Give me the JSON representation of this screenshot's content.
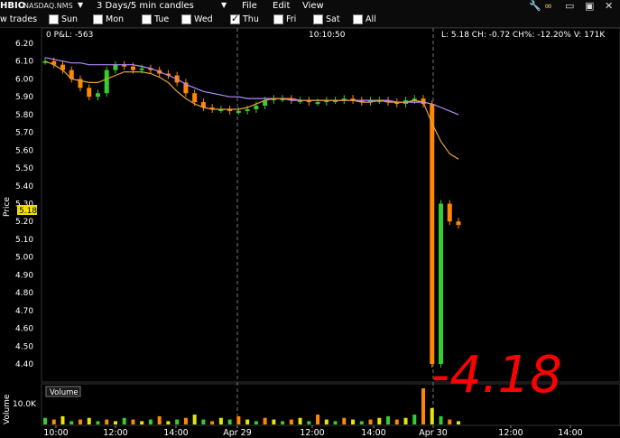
{
  "toolbar": {
    "symbol": "HBIO",
    "exchange": "NASDAQ.NMS",
    "timeframe": "3 Days/5 min candles",
    "menus": [
      "File",
      "Edit",
      "View"
    ]
  },
  "filters": {
    "label": "w trades",
    "days": [
      {
        "label": "Sun",
        "checked": false
      },
      {
        "label": "Mon",
        "checked": false
      },
      {
        "label": "Tue",
        "checked": false
      },
      {
        "label": "Wed",
        "checked": false
      },
      {
        "label": "Thu",
        "checked": true
      },
      {
        "label": "Fri",
        "checked": false
      },
      {
        "label": "Sat",
        "checked": false
      },
      {
        "label": "All",
        "checked": false
      }
    ]
  },
  "info": {
    "pnl": "0 P&L: -563",
    "time": "10:10:50",
    "quote": "L: 5.18 CH: -0.72 CH%: -12.20% V: 171K"
  },
  "price_tag": "5.18",
  "annotation": "-4.18",
  "volume_label": "Volume",
  "volume_axis_title": "Volume",
  "price_axis_title": "Price",
  "icons": [
    "wrench-icon",
    "link-icon",
    "minimize-icon",
    "maximize-icon",
    "close-icon"
  ],
  "chart_data": [
    {
      "type": "candlestick",
      "ylabel": "Price",
      "ylim": [
        4.3,
        6.25
      ],
      "y_ticks": [
        "6.20",
        "6.10",
        "6.00",
        "5.90",
        "5.80",
        "5.70",
        "5.60",
        "5.50",
        "5.40",
        "5.30",
        "5.20",
        "5.10",
        "5.00",
        "4.90",
        "4.80",
        "4.70",
        "4.60",
        "4.50",
        "4.40"
      ],
      "x_ticks": [
        "10:00",
        "12:00",
        "14:00",
        "Apr 29",
        "12:00",
        "14:00",
        "Apr 30",
        "12:00",
        "14:00"
      ],
      "session_dividers": [
        "Apr 29",
        "Apr 30"
      ],
      "series": [
        {
          "name": "price",
          "values": [
            6.1,
            6.08,
            6.05,
            6.0,
            5.95,
            5.9,
            5.92,
            6.05,
            6.08,
            6.07,
            6.05,
            6.06,
            6.05,
            6.03,
            6.02,
            5.98,
            5.92,
            5.87,
            5.84,
            5.83,
            5.83,
            5.82,
            5.82,
            5.83,
            5.85,
            5.88,
            5.89,
            5.89,
            5.88,
            5.88,
            5.87,
            5.87,
            5.88,
            5.88,
            5.89,
            5.88,
            5.87,
            5.88,
            5.88,
            5.87,
            5.86,
            5.88,
            5.89,
            5.86,
            4.4,
            5.3,
            5.2,
            5.18
          ]
        },
        {
          "name": "ma_slow",
          "values": [
            6.12,
            6.11,
            6.1,
            6.09,
            6.09,
            6.08,
            6.08,
            6.08,
            6.08,
            6.08,
            6.08,
            6.07,
            6.06,
            6.04,
            6.02,
            6.0,
            5.97,
            5.95,
            5.93,
            5.92,
            5.91,
            5.9,
            5.9,
            5.89,
            5.89,
            5.89,
            5.89,
            5.89,
            5.88,
            5.88,
            5.88,
            5.88,
            5.88,
            5.88,
            5.88,
            5.88,
            5.88,
            5.88,
            5.88,
            5.88,
            5.87,
            5.87,
            5.87,
            5.87,
            5.86,
            5.84,
            5.82,
            5.8
          ]
        },
        {
          "name": "ma_fast",
          "values": [
            6.1,
            6.08,
            6.05,
            6.0,
            5.99,
            5.98,
            5.98,
            6.0,
            6.02,
            6.04,
            6.04,
            6.04,
            6.03,
            6.01,
            5.98,
            5.93,
            5.89,
            5.86,
            5.84,
            5.83,
            5.83,
            5.83,
            5.83,
            5.84,
            5.86,
            5.88,
            5.89,
            5.89,
            5.89,
            5.88,
            5.88,
            5.88,
            5.88,
            5.88,
            5.88,
            5.88,
            5.87,
            5.87,
            5.88,
            5.87,
            5.87,
            5.87,
            5.88,
            5.87,
            5.75,
            5.65,
            5.58,
            5.55
          ]
        }
      ]
    },
    {
      "type": "bar",
      "ylabel": "Volume",
      "y_ticks": [
        "10.0K"
      ],
      "values": [
        4,
        3,
        5,
        2,
        3,
        4,
        2,
        3,
        2,
        4,
        3,
        2,
        3,
        5,
        2,
        3,
        4,
        6,
        3,
        2,
        4,
        3,
        5,
        3,
        2,
        4,
        3,
        2,
        3,
        4,
        2,
        6,
        3,
        2,
        4,
        3,
        2,
        3,
        4,
        5,
        3,
        4,
        6,
        22,
        10,
        5,
        3,
        2
      ]
    }
  ]
}
